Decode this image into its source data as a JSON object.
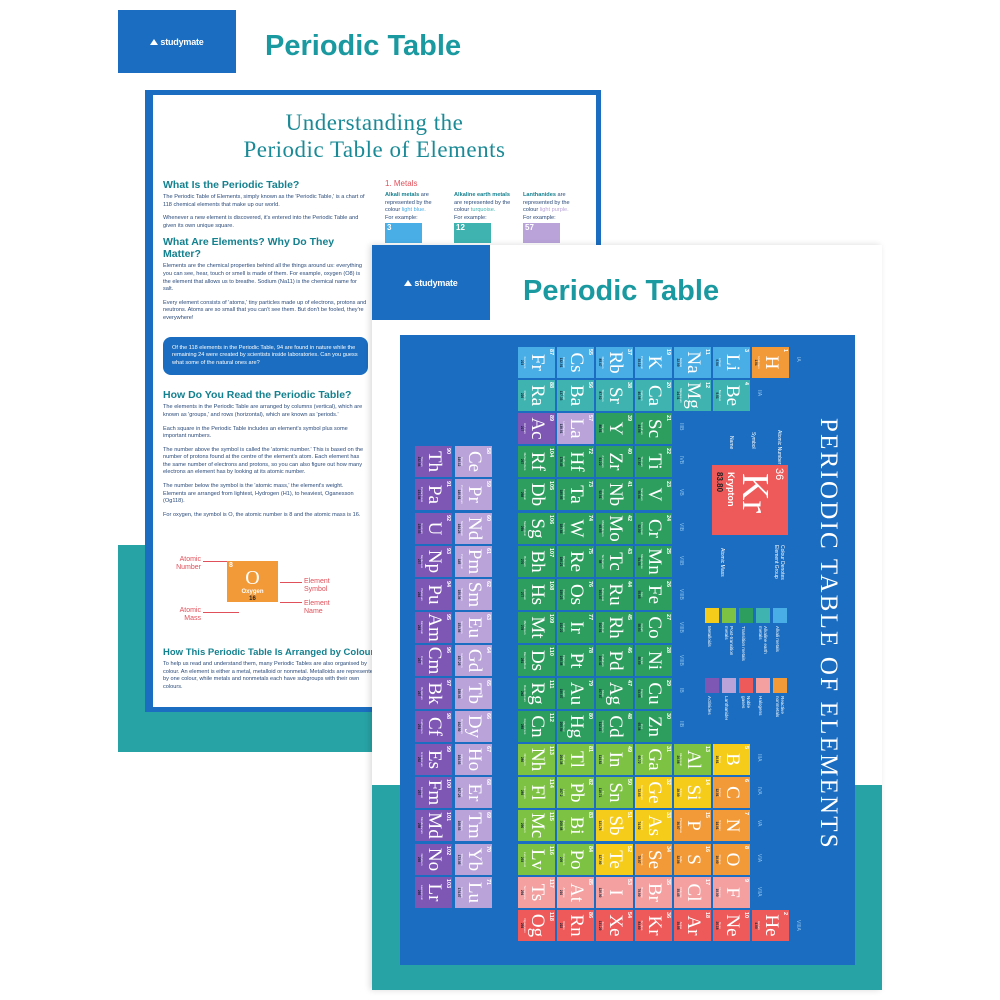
{
  "back_poster": {
    "logo": "studymate",
    "title": "Periodic Table",
    "heading": [
      "Understanding the",
      "Periodic Table of Elements"
    ],
    "s1_title": "What Is the Periodic Table?",
    "s1_p1": "The Periodic Table of Elements, simply known as the 'Periodic Table,' is a chart of 118 chemical elements that make up our world.",
    "s1_p2": "Whenever a new element is discovered, it's entered into the Periodic Table and given its own unique square.",
    "s2_title": "What Are Elements? Why Do They Matter?",
    "s2_p1": "Elements are the chemical properties behind all the things around us: everything you can see, hear, touch or smell is made of them. For example, oxygen (O8) is the element that allows us to breathe. Sodium (Na11) is the chemical name for salt.",
    "s2_p2": "Every element consists of 'atoms,' tiny particles made up of electrons, protons and neutrons. Atoms are so small that you can't see them. But don't be fooled, they're everywhere!",
    "callout": "Of the 118 elements in the Periodic Table, 94 are found in nature while the remaining 24 were created by scientists inside laboratories. Can you guess what some of the natural ones are?",
    "s3_title": "How Do You Read the Periodic Table?",
    "s3_p1": "The elements in the Periodic Table are arranged by columns (vertical), which are known as 'groups,' and rows (horizontal), which are known as 'periods.'",
    "s3_p2": "Each square in the Periodic Table includes an element's symbol plus some important numbers.",
    "s3_p3": "The number above the symbol is called the 'atomic number.' This is based on the number of protons found at the centre of the element's atom. Each element has the same number of electrons and protons, so you can also figure out how many electrons an element has by looking at its atomic number.",
    "s3_p4": "The number below the symbol is the 'atomic mass,' the element's weight. Elements are arranged from lightest, Hydrogen (H1), to heaviest, Oganesson (Og118).",
    "s3_p5": "For oxygen, the symbol is O, the atomic number is 8 and the atomic mass is 16.",
    "example": {
      "number": "8",
      "symbol": "O",
      "name": "Oxygen",
      "mass": "16",
      "label_number": "Atomic Number",
      "label_mass": "Atomic Mass",
      "label_symbol": "Element Symbol",
      "label_name": "Element Name",
      "color": "#f39a38"
    },
    "s4_title": "How This Periodic Table Is Arranged by Colour",
    "s4_p1": "To help us read and understand them, many Periodic Tables are also organised by colour. An element is either a metal, metalloid or nonmetal. Metalloids are represented by one colour, while metals and nonmetals each have subgroups with their own colours.",
    "metals_title": "1. Metals",
    "metals": [
      {
        "bold": "Alkali metals",
        "text": " are represented by the colour ",
        "colour": "light blue.",
        "example": "For example:",
        "num": "3",
        "color": "#4aaee6"
      },
      {
        "bold": "Alkaline earth metals",
        "text": " are represented by the colour ",
        "colour": "turquoise.",
        "example": "For example:",
        "num": "12",
        "color": "#3fb3b0"
      },
      {
        "bold": "Lanthanides",
        "text": " are represented by the colour ",
        "colour": "light purple.",
        "example": "For example:",
        "num": "57",
        "color": "#b9a3d9"
      }
    ]
  },
  "front_poster": {
    "logo": "studymate",
    "title": "Periodic Table",
    "big_title": "PERIODIC TABLE OF ELEMENTS",
    "group_labels": [
      "IA",
      "IIA",
      "IIIB",
      "IVB",
      "VB",
      "VIB",
      "VIIB",
      "VIIIB",
      "VIIIB",
      "VIIIB",
      "IB",
      "IIB",
      "IIIA",
      "IVA",
      "VA",
      "VIA",
      "VIIA",
      "VIIIA"
    ],
    "key": {
      "number": "36",
      "symbol": "Kr",
      "name": "Krypton",
      "mass": "83.80",
      "label_number": "Atomic Number",
      "label_symbol": "Symbol",
      "label_name": "Name",
      "label_mass": "Atomic Mass",
      "label_colour": "Colour Denotes Element Group"
    },
    "legend": [
      {
        "key": "metalloid",
        "label": "Metalloids"
      },
      {
        "key": "post",
        "label": "Post-transition metals"
      },
      {
        "key": "transition",
        "label": "Transition metals"
      },
      {
        "key": "alkaline",
        "label": "Alkaline earth metals"
      },
      {
        "key": "alkali",
        "label": "Alkali metals"
      },
      {
        "key": "actinide",
        "label": "Actinides"
      },
      {
        "key": "lanthanide",
        "label": "Lanthanides"
      },
      {
        "key": "noble",
        "label": "Noble gases"
      },
      {
        "key": "halogen",
        "label": "Halogens"
      },
      {
        "key": "nonmetal",
        "label": "Reactive nonmetals"
      }
    ],
    "colors": {
      "alkali": "#4aaee6",
      "alkaline": "#3fb3b0",
      "transition": "#2e9e5e",
      "post": "#7dc242",
      "metalloid": "#f6cc1b",
      "nonmetal": "#f39a38",
      "halogen": "#f4a0a0",
      "noble": "#ee5a5a",
      "lanthanide": "#b9a3d9",
      "actinide": "#7e57b5",
      "background": "#1a6dc0"
    },
    "elements": [
      [
        1,
        "H",
        "Hydrogen",
        "1.01",
        1,
        1,
        "nonmetal"
      ],
      [
        2,
        "He",
        "Helium",
        "4.00",
        18,
        1,
        "noble"
      ],
      [
        3,
        "Li",
        "Lithium",
        "6.94",
        1,
        2,
        "alkali"
      ],
      [
        4,
        "Be",
        "Beryllium",
        "9.01",
        2,
        2,
        "alkaline"
      ],
      [
        5,
        "B",
        "Boron",
        "10.81",
        13,
        2,
        "metalloid"
      ],
      [
        6,
        "C",
        "Carbon",
        "12.01",
        14,
        2,
        "nonmetal"
      ],
      [
        7,
        "N",
        "Nitrogen",
        "14.01",
        15,
        2,
        "nonmetal"
      ],
      [
        8,
        "O",
        "Oxygen",
        "16.00",
        16,
        2,
        "nonmetal"
      ],
      [
        9,
        "F",
        "Fluorine",
        "19.00",
        17,
        2,
        "halogen"
      ],
      [
        10,
        "Ne",
        "Neon",
        "20.18",
        18,
        2,
        "noble"
      ],
      [
        11,
        "Na",
        "Sodium",
        "22.99",
        1,
        3,
        "alkali"
      ],
      [
        12,
        "Mg",
        "Magnesium",
        "24.31",
        2,
        3,
        "alkaline"
      ],
      [
        13,
        "Al",
        "Aluminium",
        "26.98",
        13,
        3,
        "post"
      ],
      [
        14,
        "Si",
        "Silicon",
        "28.09",
        14,
        3,
        "metalloid"
      ],
      [
        15,
        "P",
        "Phosphorus",
        "30.97",
        15,
        3,
        "nonmetal"
      ],
      [
        16,
        "S",
        "Sulfur",
        "32.06",
        16,
        3,
        "nonmetal"
      ],
      [
        17,
        "Cl",
        "Chlorine",
        "35.45",
        17,
        3,
        "halogen"
      ],
      [
        18,
        "Ar",
        "Argon",
        "39.95",
        18,
        3,
        "noble"
      ],
      [
        19,
        "K",
        "Potassium",
        "39.10",
        1,
        4,
        "alkali"
      ],
      [
        20,
        "Ca",
        "Calcium",
        "40.08",
        2,
        4,
        "alkaline"
      ],
      [
        21,
        "Sc",
        "Scandium",
        "44.96",
        3,
        4,
        "transition"
      ],
      [
        22,
        "Ti",
        "Titanium",
        "47.87",
        4,
        4,
        "transition"
      ],
      [
        23,
        "V",
        "Vanadium",
        "50.94",
        5,
        4,
        "transition"
      ],
      [
        24,
        "Cr",
        "Chromium",
        "52.00",
        6,
        4,
        "transition"
      ],
      [
        25,
        "Mn",
        "Manganese",
        "54.94",
        7,
        4,
        "transition"
      ],
      [
        26,
        "Fe",
        "Iron",
        "55.85",
        8,
        4,
        "transition"
      ],
      [
        27,
        "Co",
        "Cobalt",
        "58.93",
        9,
        4,
        "transition"
      ],
      [
        28,
        "Ni",
        "Nickel",
        "58.69",
        10,
        4,
        "transition"
      ],
      [
        29,
        "Cu",
        "Copper",
        "63.55",
        11,
        4,
        "transition"
      ],
      [
        30,
        "Zn",
        "Zinc",
        "65.38",
        12,
        4,
        "transition"
      ],
      [
        31,
        "Ga",
        "Gallium",
        "69.72",
        13,
        4,
        "post"
      ],
      [
        32,
        "Ge",
        "Germanium",
        "72.63",
        14,
        4,
        "metalloid"
      ],
      [
        33,
        "As",
        "Arsenic",
        "74.92",
        15,
        4,
        "metalloid"
      ],
      [
        34,
        "Se",
        "Selenium",
        "78.97",
        16,
        4,
        "nonmetal"
      ],
      [
        35,
        "Br",
        "Bromine",
        "79.90",
        17,
        4,
        "halogen"
      ],
      [
        36,
        "Kr",
        "Krypton",
        "83.80",
        18,
        4,
        "noble"
      ],
      [
        37,
        "Rb",
        "Rubidium",
        "85.47",
        1,
        5,
        "alkali"
      ],
      [
        38,
        "Sr",
        "Strontium",
        "87.62",
        2,
        5,
        "alkaline"
      ],
      [
        39,
        "Y",
        "Yttrium",
        "88.91",
        3,
        5,
        "transition"
      ],
      [
        40,
        "Zr",
        "Zirconium",
        "91.22",
        4,
        5,
        "transition"
      ],
      [
        41,
        "Nb",
        "Niobium",
        "92.91",
        5,
        5,
        "transition"
      ],
      [
        42,
        "Mo",
        "Molybdenum",
        "95.95",
        6,
        5,
        "transition"
      ],
      [
        43,
        "Tc",
        "Technetium",
        "98",
        7,
        5,
        "transition"
      ],
      [
        44,
        "Ru",
        "Ruthenium",
        "101.07",
        8,
        5,
        "transition"
      ],
      [
        45,
        "Rh",
        "Rhodium",
        "102.91",
        9,
        5,
        "transition"
      ],
      [
        46,
        "Pd",
        "Palladium",
        "106.42",
        10,
        5,
        "transition"
      ],
      [
        47,
        "Ag",
        "Silver",
        "107.87",
        11,
        5,
        "transition"
      ],
      [
        48,
        "Cd",
        "Cadmium",
        "112.41",
        12,
        5,
        "transition"
      ],
      [
        49,
        "In",
        "Indium",
        "114.82",
        13,
        5,
        "post"
      ],
      [
        50,
        "Sn",
        "Tin",
        "118.71",
        14,
        5,
        "post"
      ],
      [
        51,
        "Sb",
        "Antimony",
        "121.76",
        15,
        5,
        "metalloid"
      ],
      [
        52,
        "Te",
        "Tellurium",
        "127.60",
        16,
        5,
        "metalloid"
      ],
      [
        53,
        "I",
        "Iodine",
        "126.90",
        17,
        5,
        "halogen"
      ],
      [
        54,
        "Xe",
        "Xenon",
        "131.29",
        18,
        5,
        "noble"
      ],
      [
        55,
        "Cs",
        "Caesium",
        "132.91",
        1,
        6,
        "alkali"
      ],
      [
        56,
        "Ba",
        "Barium",
        "137.33",
        2,
        6,
        "alkaline"
      ],
      [
        57,
        "La",
        "Lanthanum",
        "138.91",
        3,
        6,
        "lanthanide"
      ],
      [
        72,
        "Hf",
        "Hafnium",
        "178.49",
        4,
        6,
        "transition"
      ],
      [
        73,
        "Ta",
        "Tantalum",
        "180.95",
        5,
        6,
        "transition"
      ],
      [
        74,
        "W",
        "Tungsten",
        "183.84",
        6,
        6,
        "transition"
      ],
      [
        75,
        "Re",
        "Rhenium",
        "186.21",
        7,
        6,
        "transition"
      ],
      [
        76,
        "Os",
        "Osmium",
        "190.23",
        8,
        6,
        "transition"
      ],
      [
        77,
        "Ir",
        "Iridium",
        "192.22",
        9,
        6,
        "transition"
      ],
      [
        78,
        "Pt",
        "Platinum",
        "195.08",
        10,
        6,
        "transition"
      ],
      [
        79,
        "Au",
        "Gold",
        "196.97",
        11,
        6,
        "transition"
      ],
      [
        80,
        "Hg",
        "Mercury",
        "200.59",
        12,
        6,
        "transition"
      ],
      [
        81,
        "Tl",
        "Thallium",
        "204.38",
        13,
        6,
        "post"
      ],
      [
        82,
        "Pb",
        "Lead",
        "207.2",
        14,
        6,
        "post"
      ],
      [
        83,
        "Bi",
        "Bismuth",
        "208.98",
        15,
        6,
        "post"
      ],
      [
        84,
        "Po",
        "Polonium",
        "209",
        16,
        6,
        "post"
      ],
      [
        85,
        "At",
        "Astatine",
        "210",
        17,
        6,
        "halogen"
      ],
      [
        86,
        "Rn",
        "Radon",
        "222",
        18,
        6,
        "noble"
      ],
      [
        87,
        "Fr",
        "Francium",
        "223",
        1,
        7,
        "alkali"
      ],
      [
        88,
        "Ra",
        "Radium",
        "226",
        2,
        7,
        "alkaline"
      ],
      [
        89,
        "Ac",
        "Actinium",
        "227",
        3,
        7,
        "actinide"
      ],
      [
        104,
        "Rf",
        "Rutherfordium",
        "267",
        4,
        7,
        "transition"
      ],
      [
        105,
        "Db",
        "Dubnium",
        "268",
        5,
        7,
        "transition"
      ],
      [
        106,
        "Sg",
        "Seaborgium",
        "269",
        6,
        7,
        "transition"
      ],
      [
        107,
        "Bh",
        "Bohrium",
        "270",
        7,
        7,
        "transition"
      ],
      [
        108,
        "Hs",
        "Hassium",
        "277",
        8,
        7,
        "transition"
      ],
      [
        109,
        "Mt",
        "Meitnerium",
        "278",
        9,
        7,
        "transition"
      ],
      [
        110,
        "Ds",
        "Darmstadtium",
        "281",
        10,
        7,
        "transition"
      ],
      [
        111,
        "Rg",
        "Roentgenium",
        "282",
        11,
        7,
        "transition"
      ],
      [
        112,
        "Cn",
        "Copernicium",
        "285",
        12,
        7,
        "transition"
      ],
      [
        113,
        "Nh",
        "Nihonium",
        "286",
        13,
        7,
        "post"
      ],
      [
        114,
        "Fl",
        "Flerovium",
        "289",
        14,
        7,
        "post"
      ],
      [
        115,
        "Mc",
        "Moscovium",
        "290",
        15,
        7,
        "post"
      ],
      [
        116,
        "Lv",
        "Livermorium",
        "293",
        16,
        7,
        "post"
      ],
      [
        117,
        "Ts",
        "Tennessine",
        "294",
        17,
        7,
        "halogen"
      ],
      [
        118,
        "Og",
        "Oganesson",
        "294",
        18,
        7,
        "noble"
      ]
    ],
    "lanthanides": [
      [
        58,
        "Ce",
        "Cerium",
        "140.12"
      ],
      [
        59,
        "Pr",
        "Praseodymium",
        "140.91"
      ],
      [
        60,
        "Nd",
        "Neodymium",
        "144.24"
      ],
      [
        61,
        "Pm",
        "Promethium",
        "145"
      ],
      [
        62,
        "Sm",
        "Samarium",
        "150.36"
      ],
      [
        63,
        "Eu",
        "Europium",
        "151.96"
      ],
      [
        64,
        "Gd",
        "Gadolinium",
        "157.25"
      ],
      [
        65,
        "Tb",
        "Terbium",
        "158.93"
      ],
      [
        66,
        "Dy",
        "Dysprosium",
        "162.50"
      ],
      [
        67,
        "Ho",
        "Holmium",
        "164.93"
      ],
      [
        68,
        "Er",
        "Erbium",
        "167.26"
      ],
      [
        69,
        "Tm",
        "Thulium",
        "168.93"
      ],
      [
        70,
        "Yb",
        "Ytterbium",
        "173.05"
      ],
      [
        71,
        "Lu",
        "Lutetium",
        "174.97"
      ]
    ],
    "actinides": [
      [
        90,
        "Th",
        "Thorium",
        "232.04"
      ],
      [
        91,
        "Pa",
        "Protactinium",
        "231.04"
      ],
      [
        92,
        "U",
        "Uranium",
        "238.03"
      ],
      [
        93,
        "Np",
        "Neptunium",
        "237"
      ],
      [
        94,
        "Pu",
        "Plutonium",
        "244"
      ],
      [
        95,
        "Am",
        "Americium",
        "243"
      ],
      [
        96,
        "Cm",
        "Curium",
        "247"
      ],
      [
        97,
        "Bk",
        "Berkelium",
        "247"
      ],
      [
        98,
        "Cf",
        "Californium",
        "251"
      ],
      [
        99,
        "Es",
        "Einsteinium",
        "252"
      ],
      [
        100,
        "Fm",
        "Fermium",
        "257"
      ],
      [
        101,
        "Md",
        "Mendelevium",
        "258"
      ],
      [
        102,
        "No",
        "Nobelium",
        "259"
      ],
      [
        103,
        "Lr",
        "Lawrencium",
        "266"
      ]
    ]
  }
}
